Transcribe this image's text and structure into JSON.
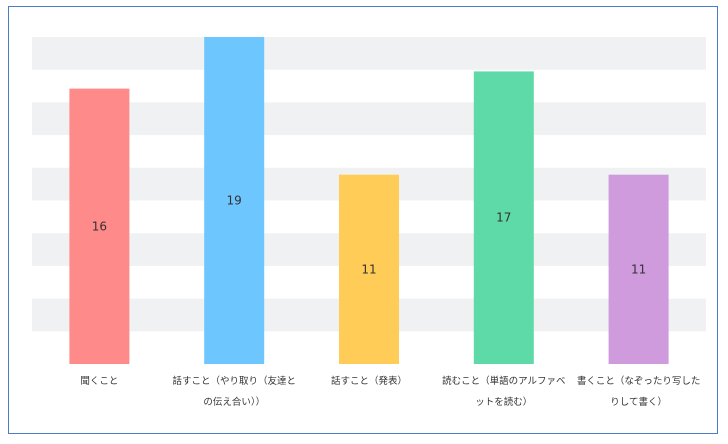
{
  "chart_data": {
    "type": "bar",
    "title": "",
    "xlabel": "",
    "ylabel": "",
    "categories": [
      [
        "聞くこと"
      ],
      [
        "話すこと（やり取り（友達と",
        "の伝え合い））"
      ],
      [
        "話すこと（発表）"
      ],
      [
        "読むこと（単語のアルファベ",
        "ットを読む）"
      ],
      [
        "書くこと（なぞったり写した",
        "りして書く）"
      ]
    ],
    "values": [
      16,
      19,
      11,
      17,
      11
    ],
    "colors": [
      "#ff8a8a",
      "#6ec6ff",
      "#ffcd57",
      "#5ed9a8",
      "#cf9bdc"
    ],
    "ylim": [
      0,
      19
    ],
    "grid": true,
    "grid_bands": 5,
    "band_color": "#f0f1f3"
  }
}
